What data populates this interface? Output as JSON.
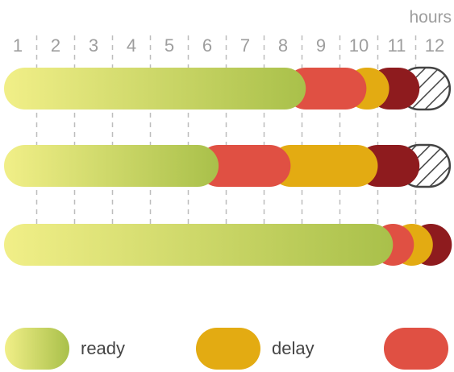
{
  "chart_data": {
    "type": "bar",
    "orientation": "horizontal-stacked",
    "unit_label": "hours",
    "ticks": [
      "1",
      "2",
      "3",
      "4",
      "5",
      "6",
      "7",
      "8",
      "9",
      "10",
      "11",
      "12"
    ],
    "xlim": [
      1,
      12
    ],
    "bars": [
      {
        "segments": [
          {
            "category": "ready",
            "start": 1,
            "end": 8.6
          },
          {
            "category": "red",
            "start": 8.6,
            "end": 10.2
          },
          {
            "category": "delay",
            "start": 10.2,
            "end": 10.8
          },
          {
            "category": "dark",
            "start": 10.8,
            "end": 11.6
          },
          {
            "category": "hatched",
            "start": 11.6,
            "end": 12.4
          }
        ]
      },
      {
        "segments": [
          {
            "category": "ready",
            "start": 1,
            "end": 6.3
          },
          {
            "category": "red",
            "start": 6.3,
            "end": 8.2
          },
          {
            "category": "delay",
            "start": 8.2,
            "end": 10.5
          },
          {
            "category": "dark",
            "start": 10.5,
            "end": 11.6
          },
          {
            "category": "hatched",
            "start": 11.6,
            "end": 12.4
          }
        ]
      },
      {
        "segments": [
          {
            "category": "ready",
            "start": 1,
            "end": 10.9
          },
          {
            "category": "red",
            "start": 10.9,
            "end": 11.4
          },
          {
            "category": "delay",
            "start": 11.4,
            "end": 11.9
          },
          {
            "category": "dark",
            "start": 11.9,
            "end": 12.4
          }
        ]
      }
    ],
    "colors": {
      "ready_start": "#f1ef88",
      "ready_end": "#a9c04a",
      "red": "#e05043",
      "delay": "#e3ab12",
      "dark": "#8e1b1e",
      "hatch": "#444444",
      "grid": "#bdbdbd"
    },
    "legend": [
      {
        "key": "ready",
        "label": "ready"
      },
      {
        "key": "delay",
        "label": "delay"
      },
      {
        "key": "red",
        "label": ""
      }
    ]
  }
}
